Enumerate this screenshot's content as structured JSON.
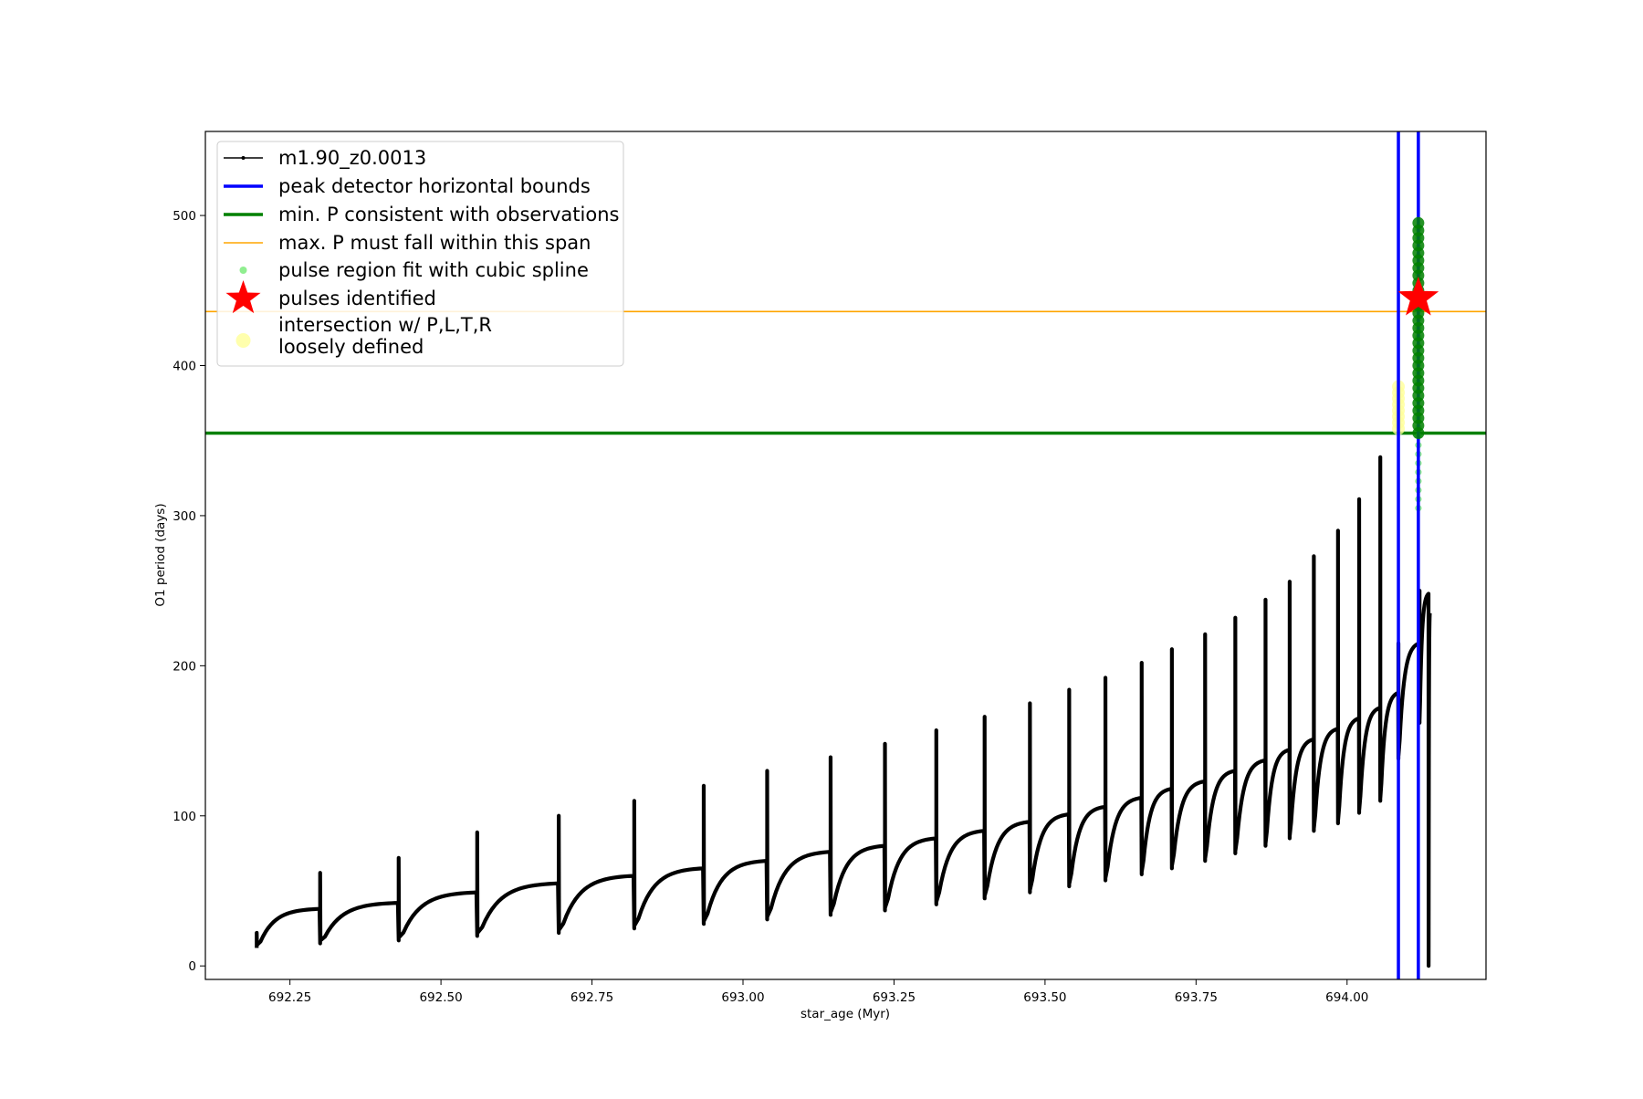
{
  "chart_data": {
    "type": "line",
    "xlabel": "star_age (Myr)",
    "ylabel": "O1 period (days)",
    "xlim": [
      692.11,
      694.23
    ],
    "ylim": [
      -9,
      556
    ],
    "x_ticks": [
      692.25,
      692.5,
      692.75,
      693.0,
      693.25,
      693.5,
      693.75,
      694.0
    ],
    "x_tick_labels": [
      "692.25",
      "692.50",
      "692.75",
      "693.00",
      "693.25",
      "693.50",
      "693.75",
      "694.00"
    ],
    "y_ticks": [
      0,
      100,
      200,
      300,
      400,
      500
    ],
    "y_tick_labels": [
      "0",
      "100",
      "200",
      "300",
      "400",
      "500"
    ],
    "grid": false,
    "legend_position": "upper-left",
    "colors": {
      "model": "#000000",
      "peak_bounds": "#0000ff",
      "min_p": "#008000",
      "max_p": "#ffa500",
      "spline": "#90ee90",
      "pulse": "#ff0000",
      "intersection": "#ffff99"
    },
    "legend": [
      {
        "key": "model",
        "label": "m1.90_z0.0013"
      },
      {
        "key": "peak_bounds",
        "label": "peak detector horizontal bounds"
      },
      {
        "key": "min_p",
        "label": "min. P consistent with observations"
      },
      {
        "key": "max_p",
        "label": "max. P must fall within this span"
      },
      {
        "key": "spline",
        "label": "pulse region fit with cubic spline"
      },
      {
        "key": "pulse",
        "label": "pulses identified"
      },
      {
        "key": "intersection",
        "label": "intersection w/ P,L,T,R",
        "label2": "loosely defined"
      }
    ],
    "series": [
      {
        "name": "m1.90_z0.0013",
        "style": "line-with-markers",
        "pulses": [
          {
            "x": 692.195,
            "p0": 12,
            "p1": 38,
            "spike": 22
          },
          {
            "x": 692.3,
            "p0": 15,
            "p1": 42,
            "spike": 62
          },
          {
            "x": 692.43,
            "p0": 17,
            "p1": 49,
            "spike": 72
          },
          {
            "x": 692.56,
            "p0": 20,
            "p1": 55,
            "spike": 89
          },
          {
            "x": 692.695,
            "p0": 22,
            "p1": 60,
            "spike": 100
          },
          {
            "x": 692.82,
            "p0": 25,
            "p1": 65,
            "spike": 110
          },
          {
            "x": 692.935,
            "p0": 28,
            "p1": 70,
            "spike": 120
          },
          {
            "x": 693.04,
            "p0": 31,
            "p1": 76,
            "spike": 130
          },
          {
            "x": 693.145,
            "p0": 34,
            "p1": 80,
            "spike": 139
          },
          {
            "x": 693.235,
            "p0": 37,
            "p1": 85,
            "spike": 148
          },
          {
            "x": 693.32,
            "p0": 41,
            "p1": 90,
            "spike": 157
          },
          {
            "x": 693.4,
            "p0": 45,
            "p1": 96,
            "spike": 166
          },
          {
            "x": 693.475,
            "p0": 49,
            "p1": 101,
            "spike": 175
          },
          {
            "x": 693.54,
            "p0": 53,
            "p1": 106,
            "spike": 184
          },
          {
            "x": 693.6,
            "p0": 57,
            "p1": 112,
            "spike": 192
          },
          {
            "x": 693.66,
            "p0": 61,
            "p1": 118,
            "spike": 202
          },
          {
            "x": 693.71,
            "p0": 65,
            "p1": 123,
            "spike": 211
          },
          {
            "x": 693.765,
            "p0": 70,
            "p1": 130,
            "spike": 221
          },
          {
            "x": 693.815,
            "p0": 75,
            "p1": 137,
            "spike": 232
          },
          {
            "x": 693.865,
            "p0": 80,
            "p1": 144,
            "spike": 244
          },
          {
            "x": 693.905,
            "p0": 85,
            "p1": 151,
            "spike": 256
          },
          {
            "x": 693.945,
            "p0": 90,
            "p1": 158,
            "spike": 273
          },
          {
            "x": 693.985,
            "p0": 95,
            "p1": 165,
            "spike": 290
          },
          {
            "x": 694.02,
            "p0": 102,
            "p1": 172,
            "spike": 311
          },
          {
            "x": 694.055,
            "p0": 110,
            "p1": 182,
            "spike": 339
          },
          {
            "x": 694.085,
            "p0": 138,
            "p1": 215,
            "spike": 215
          },
          {
            "x": 694.12,
            "p0": 162,
            "p1": 248,
            "spike": 250
          },
          {
            "x": 694.135,
            "p0": 0,
            "p1": 235,
            "spike": 235
          }
        ]
      },
      {
        "name": "peak detector horizontal bounds",
        "style": "vline",
        "x": [
          694.085,
          694.118
        ]
      },
      {
        "name": "min. P consistent with observations",
        "style": "hline",
        "y": 355
      },
      {
        "name": "max. P must fall within this span",
        "style": "hline",
        "y": 436
      },
      {
        "name": "pulse region fit with cubic spline",
        "style": "scatter",
        "x": 694.118,
        "y_range": [
          305,
          495
        ]
      },
      {
        "name": "pulses identified",
        "style": "scatter",
        "x": [
          694.118
        ],
        "y": [
          445
        ]
      },
      {
        "name": "intersection w/ P,L,T,R loosely defined",
        "style": "scatter",
        "x": 694.085,
        "y_range": [
          358,
          388
        ]
      }
    ]
  }
}
